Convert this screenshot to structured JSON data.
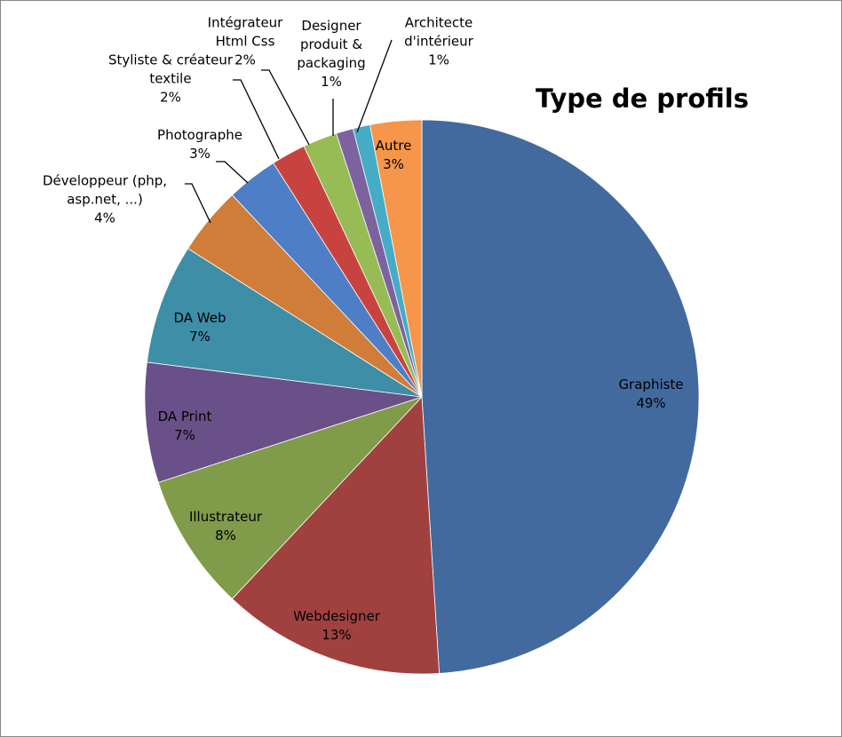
{
  "chart_data": {
    "type": "pie",
    "title": "Type de profils",
    "categories": [
      "Graphiste",
      "Webdesigner",
      "Illustrateur",
      "DA Print",
      "DA Web",
      "Développeur (php, asp.net, ...)",
      "Photographe",
      "Styliste & créateur textile",
      "Intégrateur Html Css",
      "Designer produit & packaging",
      "Architecte d'intérieur",
      "Autre"
    ],
    "values": [
      49,
      13,
      8,
      7,
      7,
      4,
      3,
      2,
      2,
      1,
      1,
      3
    ],
    "value_labels": [
      "49%",
      "13%",
      "8%",
      "7%",
      "7%",
      "4%",
      "3%",
      "2%",
      "2%",
      "1%",
      "1%",
      "3%"
    ],
    "colors": [
      "#426a9e",
      "#a0413f",
      "#809b49",
      "#6a5088",
      "#3d8ea6",
      "#d07d3a",
      "#4e7fc6",
      "#c8433f",
      "#97bc55",
      "#7d62a0",
      "#45acc6",
      "#f5964a"
    ]
  }
}
